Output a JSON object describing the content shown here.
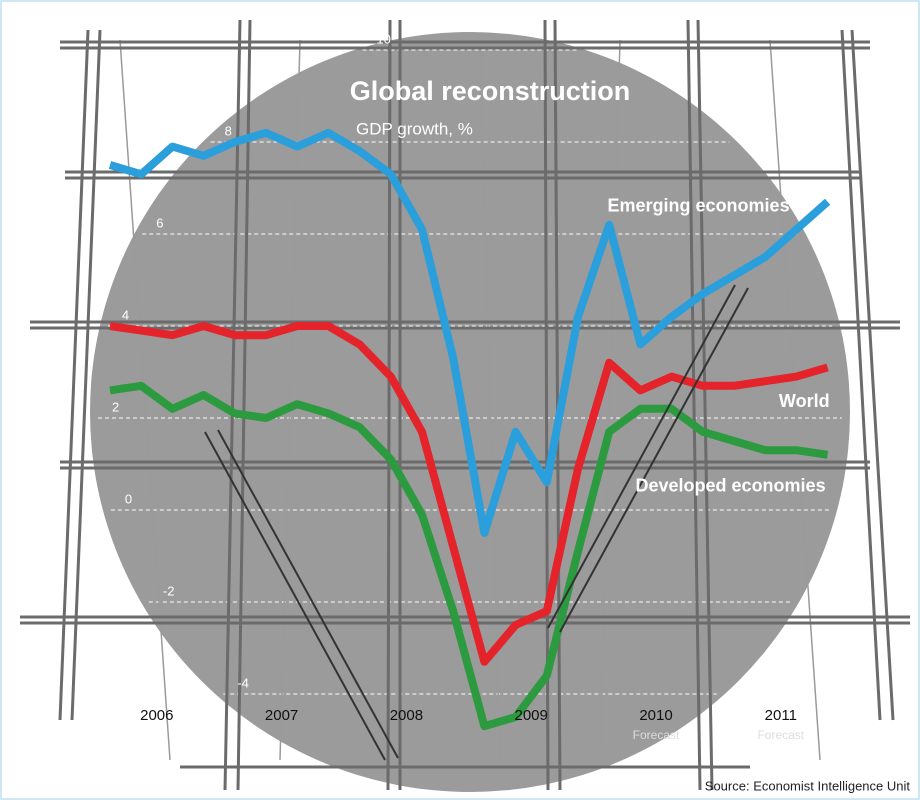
{
  "chart_data": {
    "type": "line",
    "title": "Global reconstruction",
    "subtitle": "GDP growth, %",
    "source": "Source: Economist Intelligence Unit",
    "categories": [
      "2006",
      null,
      null,
      null,
      "2007",
      null,
      null,
      null,
      "2008",
      null,
      null,
      null,
      "2009",
      null,
      null,
      null,
      "2010",
      null,
      null,
      null,
      "2011",
      null,
      null,
      null
    ],
    "category_notes": [
      null,
      null,
      null,
      null,
      null,
      null,
      null,
      null,
      null,
      null,
      null,
      null,
      null,
      null,
      null,
      null,
      "Forecast",
      null,
      null,
      null,
      "Forecast",
      null,
      null,
      null
    ],
    "series": [
      {
        "name": "Emerging economies",
        "color": "#2b9fdb",
        "values": [
          7.5,
          7.3,
          7.9,
          7.7,
          8.0,
          8.2,
          7.9,
          8.2,
          7.8,
          7.3,
          6.1,
          3.3,
          -0.5,
          1.7,
          0.6,
          4.2,
          6.2,
          3.6,
          4.2,
          4.7,
          5.1,
          5.5,
          6.1,
          6.7
        ]
      },
      {
        "name": "World",
        "color": "#e4232a",
        "values": [
          4.0,
          3.9,
          3.8,
          4.0,
          3.8,
          3.8,
          4.0,
          4.0,
          3.6,
          2.9,
          1.7,
          -0.8,
          -3.3,
          -2.5,
          -2.2,
          0.9,
          3.2,
          2.6,
          2.9,
          2.7,
          2.7,
          2.8,
          2.9,
          3.1
        ]
      },
      {
        "name": "Developed economies",
        "color": "#2c9a3e",
        "values": [
          2.6,
          2.7,
          2.2,
          2.5,
          2.1,
          2.0,
          2.3,
          2.1,
          1.8,
          1.1,
          -0.1,
          -2.2,
          -4.7,
          -4.5,
          -3.6,
          -0.9,
          1.7,
          2.2,
          2.2,
          1.7,
          1.5,
          1.3,
          1.3,
          1.2
        ]
      }
    ],
    "ylim": [
      -5,
      11
    ],
    "yticks": [
      -4,
      -2,
      0,
      2,
      4,
      6,
      8,
      10
    ],
    "grid": true
  }
}
